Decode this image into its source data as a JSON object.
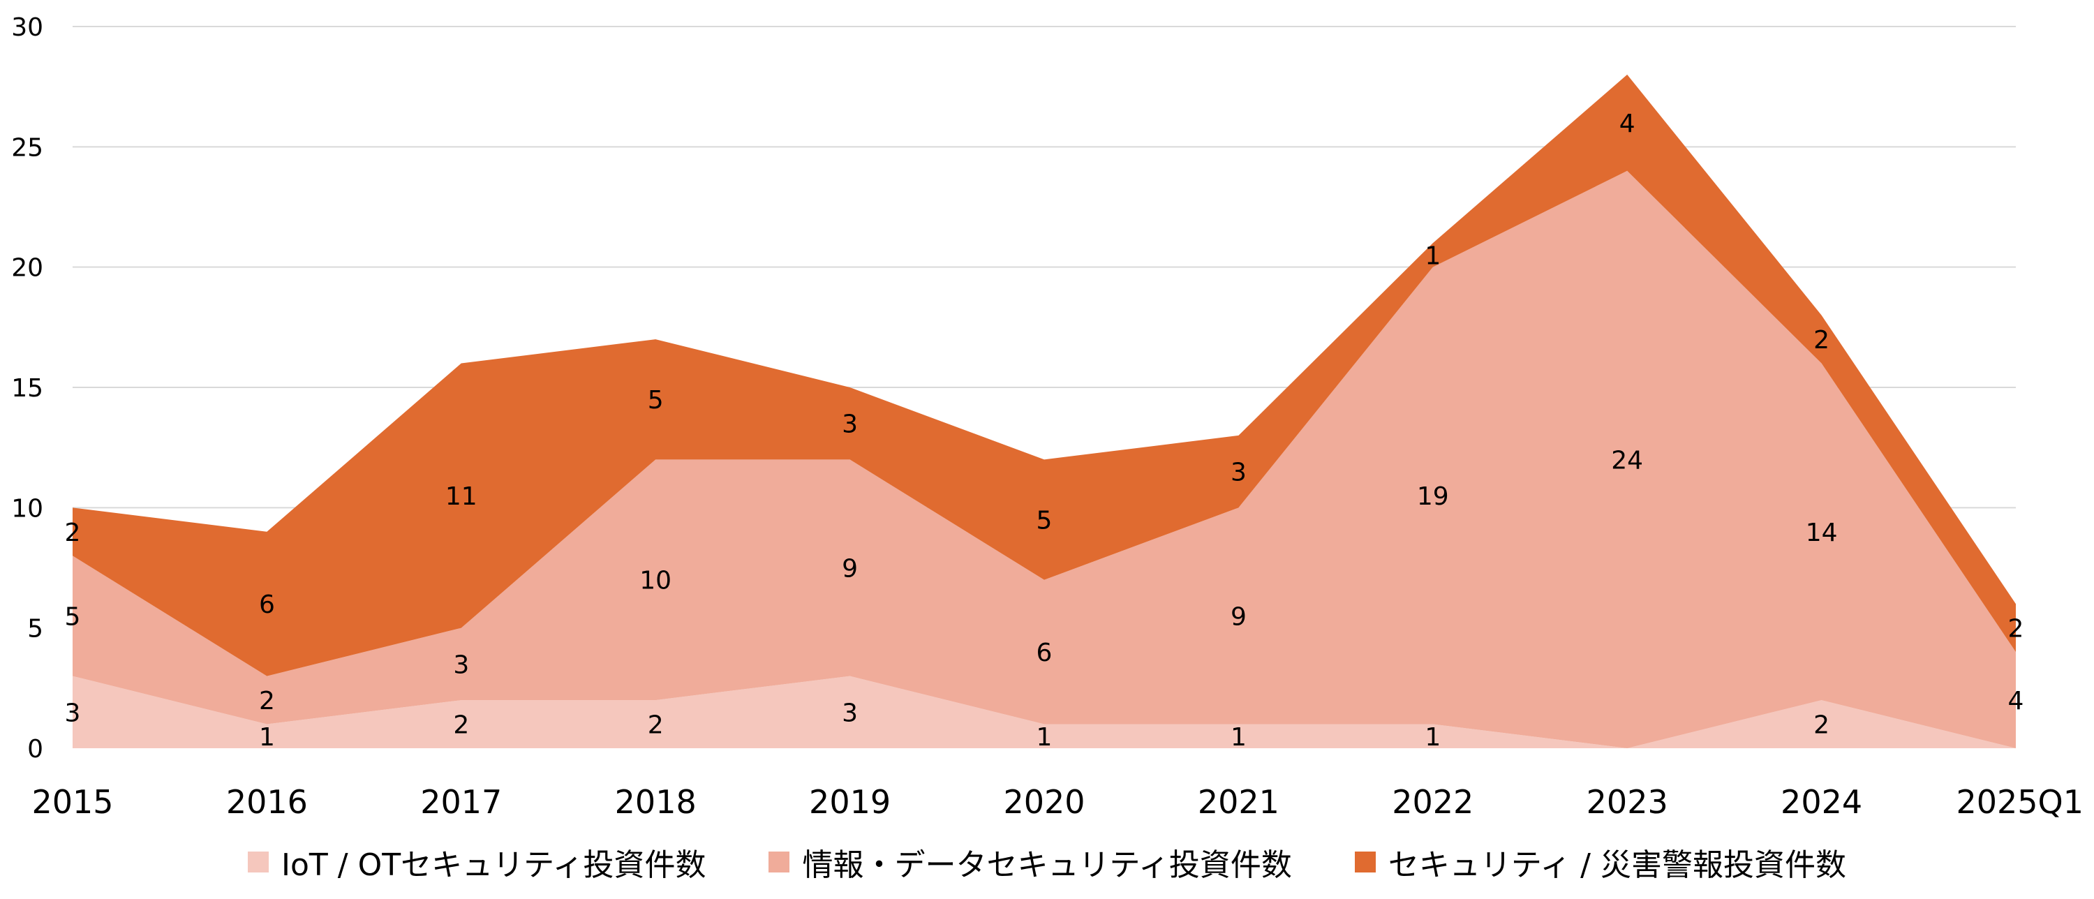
{
  "chart_data": {
    "type": "area",
    "stacked": true,
    "categories": [
      "2015",
      "2016",
      "2017",
      "2018",
      "2019",
      "2020",
      "2021",
      "2022",
      "2023",
      "2024",
      "2025Q1"
    ],
    "series": [
      {
        "name": "IoT / OTセキュリティ投資件数",
        "color": "#F5C7BD",
        "values": [
          3,
          1,
          2,
          2,
          3,
          1,
          1,
          1,
          0,
          2,
          0
        ]
      },
      {
        "name": "情報・データセキュリティ投資件数",
        "color": "#F0AC9A",
        "values": [
          5,
          2,
          3,
          10,
          9,
          6,
          9,
          19,
          24,
          14,
          4
        ]
      },
      {
        "name": "セキュリティ / 災害警報投資件数",
        "color": "#E06B30",
        "values": [
          2,
          6,
          11,
          5,
          3,
          5,
          3,
          1,
          4,
          2,
          2
        ]
      }
    ],
    "data_labels": [
      [
        "3",
        "1",
        "2",
        "2",
        "3",
        "1",
        "1",
        "1",
        "",
        "2",
        ""
      ],
      [
        "5",
        "2",
        "3",
        "10",
        "9",
        "6",
        "9",
        "19",
        "24",
        "14",
        "4"
      ],
      [
        "2",
        "6",
        "11",
        "5",
        "3",
        "5",
        "3",
        "1",
        "4",
        "2",
        "2"
      ]
    ],
    "ylim": [
      0,
      30
    ],
    "yticks": [
      "0",
      "5",
      "10",
      "15",
      "20",
      "25",
      "30"
    ],
    "ytick_values": [
      0,
      5,
      10,
      15,
      20,
      25,
      30
    ],
    "grid": true,
    "legend": "bottom",
    "title": "",
    "xlabel": "",
    "ylabel": ""
  }
}
